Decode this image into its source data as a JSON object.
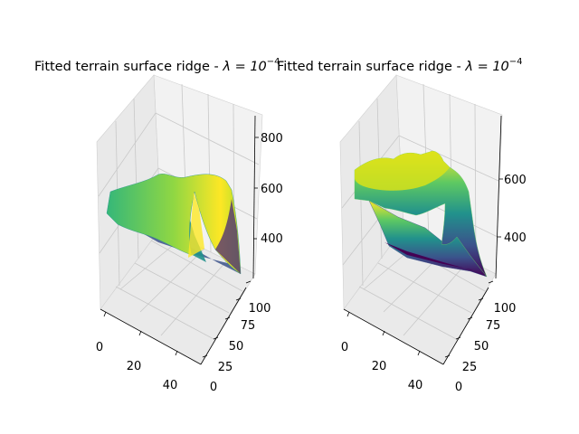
{
  "figure": {
    "background": "#ffffff",
    "pane_color": "#f2f2f2",
    "grid_color": "#c8c8c8",
    "colormap": "viridis"
  },
  "chart_data": [
    {
      "type": "surface3d",
      "title_prefix": "Fitted terrain surface ridge - ",
      "title_lambda": "λ = 10",
      "title_exp": "−4",
      "x_ticks": [
        "0",
        "20",
        "40"
      ],
      "y_ticks": [
        "0",
        "25",
        "50",
        "75",
        "100"
      ],
      "z_ticks": [
        "400",
        "600",
        "800"
      ],
      "zlim": [
        250,
        880
      ],
      "surface": "smooth ridge fit with sharp central spike",
      "grid": true
    },
    {
      "type": "surface3d",
      "title_prefix": "Fitted terrain surface ridge - ",
      "title_lambda": "λ = 10",
      "title_exp": "−4",
      "x_ticks": [
        "0",
        "20",
        "40"
      ],
      "y_ticks": [
        "0",
        "25",
        "50",
        "75",
        "100"
      ],
      "z_ticks": [
        "400",
        "600"
      ],
      "zlim": [
        260,
        790
      ],
      "surface": "rough terrain plateau dropping to a low shelf",
      "grid": true
    }
  ]
}
